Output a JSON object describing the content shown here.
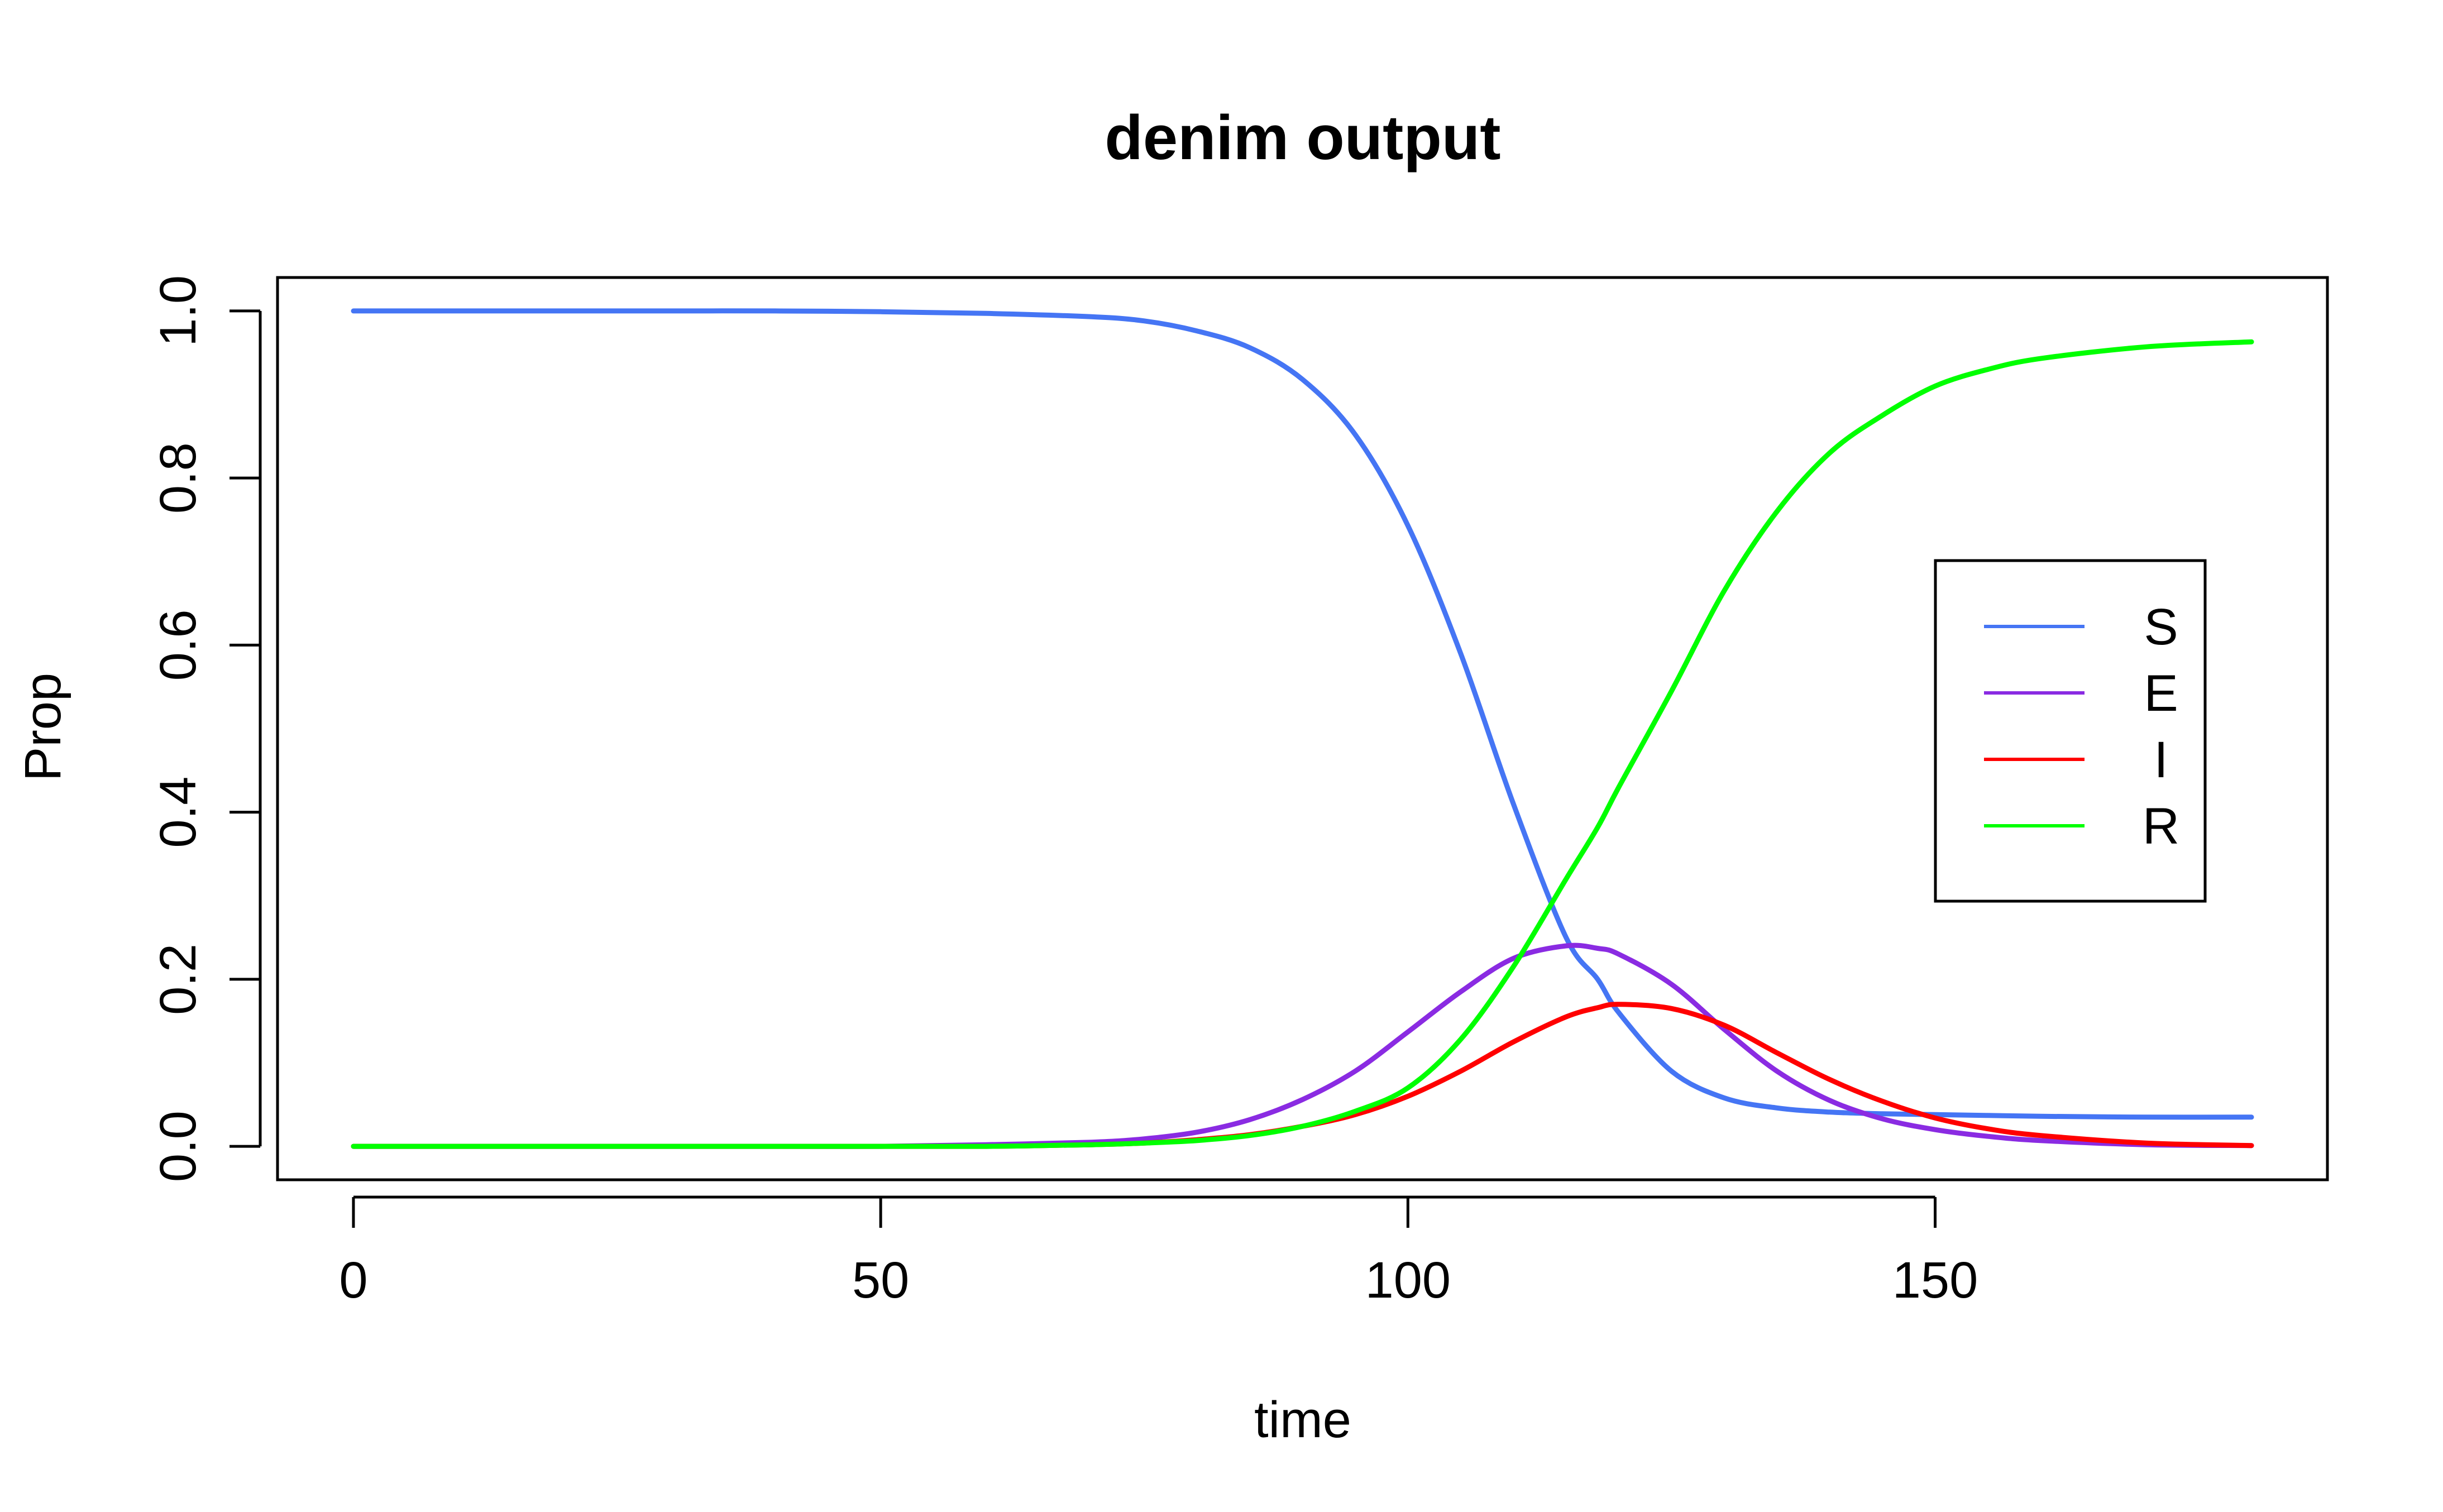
{
  "chart_data": {
    "type": "line",
    "title": "denim output",
    "xlabel": "time",
    "ylabel": "Prop",
    "xlim": [
      -7.2,
      187.2
    ],
    "ylim": [
      -0.04,
      1.04
    ],
    "x_ticks": [
      0,
      50,
      100,
      150
    ],
    "x_tick_labels": [
      "0",
      "50",
      "100",
      "150"
    ],
    "y_ticks": [
      0.0,
      0.2,
      0.4,
      0.6,
      0.8,
      1.0
    ],
    "y_tick_labels": [
      "0.0",
      "0.2",
      "0.4",
      "0.6",
      "0.8",
      "1.0"
    ],
    "grid": false,
    "legend_position": "right",
    "x": [
      0,
      10,
      20,
      30,
      40,
      50,
      60,
      70,
      75,
      80,
      85,
      90,
      95,
      100,
      105,
      110,
      115,
      118,
      120,
      125,
      130,
      135,
      140,
      145,
      150,
      155,
      160,
      170,
      180
    ],
    "series": [
      {
        "name": "S",
        "color": "#4575F4",
        "values": [
          1.0,
          1.0,
          1.0,
          1.0,
          1.0,
          0.999,
          0.997,
          0.993,
          0.988,
          0.976,
          0.956,
          0.918,
          0.852,
          0.743,
          0.59,
          0.41,
          0.25,
          0.2,
          0.16,
          0.09,
          0.058,
          0.046,
          0.041,
          0.039,
          0.038,
          0.037,
          0.036,
          0.035,
          0.035
        ]
      },
      {
        "name": "E",
        "color": "#8A2BE2",
        "values": [
          0.0,
          0.0,
          0.0,
          0.0,
          0.0,
          0.0,
          0.002,
          0.005,
          0.009,
          0.017,
          0.032,
          0.056,
          0.09,
          0.137,
          0.185,
          0.225,
          0.24,
          0.237,
          0.23,
          0.194,
          0.14,
          0.09,
          0.055,
          0.033,
          0.02,
          0.012,
          0.007,
          0.002,
          0.001
        ]
      },
      {
        "name": "I",
        "color": "#FF0000",
        "values": [
          0.0,
          0.0,
          0.0,
          0.0,
          0.0,
          0.0,
          0.0,
          0.002,
          0.004,
          0.008,
          0.014,
          0.024,
          0.038,
          0.06,
          0.09,
          0.125,
          0.155,
          0.166,
          0.17,
          0.165,
          0.145,
          0.112,
          0.08,
          0.054,
          0.034,
          0.021,
          0.013,
          0.004,
          0.001
        ]
      },
      {
        "name": "R",
        "color": "#00FF00",
        "values": [
          0.0,
          0.0,
          0.0,
          0.0,
          0.0,
          0.0,
          0.0,
          0.002,
          0.004,
          0.007,
          0.013,
          0.024,
          0.042,
          0.07,
          0.128,
          0.215,
          0.32,
          0.382,
          0.43,
          0.545,
          0.665,
          0.76,
          0.83,
          0.875,
          0.91,
          0.93,
          0.943,
          0.957,
          0.963
        ]
      }
    ]
  }
}
